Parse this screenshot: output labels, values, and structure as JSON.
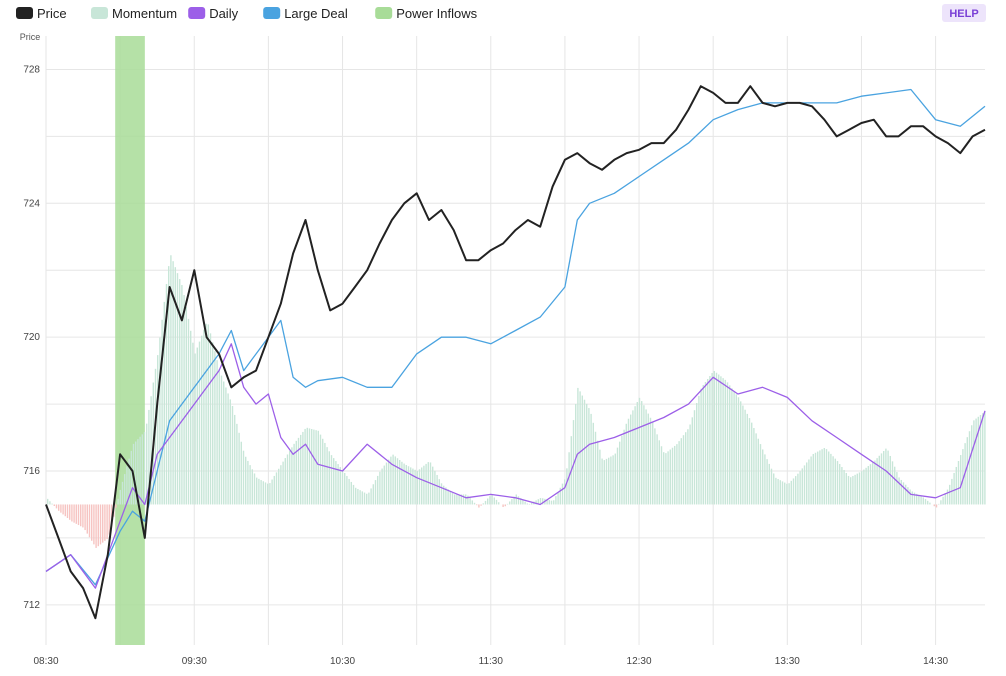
{
  "toolbar": {
    "help_label": "HELP"
  },
  "chart_data": {
    "type": "line",
    "title": "",
    "ylabel": "Price",
    "xlabel": "",
    "ylim": [
      710.8,
      729
    ],
    "grid": true,
    "legend_placement": "top-left",
    "x_ticks": [
      "08:30",
      "09:30",
      "10:30",
      "11:30",
      "12:30",
      "13:30",
      "14:30"
    ],
    "y_ticks": [
      712,
      716,
      720,
      724,
      728
    ],
    "legend": [
      {
        "name": "Price",
        "color": "#222222"
      },
      {
        "name": "Momentum",
        "color": "#c8e6d8"
      },
      {
        "name": "Daily",
        "color": "#9c5fe8"
      },
      {
        "name": "Large Deal",
        "color": "#4aa3e0"
      },
      {
        "name": "Power Inflows",
        "color": "#a8dc98"
      }
    ],
    "power_inflows": [
      {
        "start": "08:58",
        "end": "09:10"
      }
    ],
    "momentum_baseline": 715,
    "series": [
      {
        "name": "Price",
        "color": "#222222",
        "x": [
          "08:30",
          "08:35",
          "08:40",
          "08:45",
          "08:50",
          "08:55",
          "09:00",
          "09:05",
          "09:10",
          "09:15",
          "09:20",
          "09:25",
          "09:30",
          "09:35",
          "09:40",
          "09:45",
          "09:50",
          "09:55",
          "10:00",
          "10:05",
          "10:10",
          "10:15",
          "10:20",
          "10:25",
          "10:30",
          "10:35",
          "10:40",
          "10:45",
          "10:50",
          "10:55",
          "11:00",
          "11:05",
          "11:10",
          "11:15",
          "11:20",
          "11:25",
          "11:30",
          "11:35",
          "11:40",
          "11:45",
          "11:50",
          "11:55",
          "12:00",
          "12:05",
          "12:10",
          "12:15",
          "12:20",
          "12:25",
          "12:30",
          "12:35",
          "12:40",
          "12:45",
          "12:50",
          "12:55",
          "13:00",
          "13:05",
          "13:10",
          "13:15",
          "13:20",
          "13:25",
          "13:30",
          "13:35",
          "13:40",
          "13:45",
          "13:50",
          "13:55",
          "14:00",
          "14:05",
          "14:10",
          "14:15",
          "14:20",
          "14:25",
          "14:30",
          "14:35",
          "14:40",
          "14:45",
          "14:50"
        ],
        "values": [
          715.0,
          714.0,
          713.0,
          712.5,
          711.6,
          713.5,
          716.5,
          716.0,
          714.0,
          718.0,
          721.5,
          720.5,
          722.0,
          720.0,
          719.5,
          718.5,
          718.8,
          719.0,
          720.0,
          721.0,
          722.5,
          723.5,
          722.0,
          720.8,
          721.0,
          721.5,
          722.0,
          722.8,
          723.5,
          724.0,
          724.3,
          723.5,
          723.8,
          723.2,
          722.3,
          722.3,
          722.6,
          722.8,
          723.2,
          723.5,
          723.3,
          724.5,
          725.3,
          725.5,
          725.2,
          725.0,
          725.3,
          725.5,
          725.6,
          725.8,
          725.8,
          726.2,
          726.8,
          727.5,
          727.3,
          727.0,
          727.0,
          727.5,
          727.0,
          726.9,
          727.0,
          727.0,
          726.9,
          726.5,
          726.0,
          726.2,
          726.4,
          726.5,
          726.0,
          726.0,
          726.3,
          726.3,
          726.0,
          725.8,
          725.5,
          726.0,
          726.2
        ]
      },
      {
        "name": "Daily",
        "color": "#9c5fe8",
        "x": [
          "08:30",
          "08:40",
          "08:50",
          "09:00",
          "09:05",
          "09:10",
          "09:15",
          "09:20",
          "09:30",
          "09:40",
          "09:45",
          "09:50",
          "09:55",
          "10:00",
          "10:05",
          "10:10",
          "10:15",
          "10:20",
          "10:30",
          "10:40",
          "10:50",
          "11:00",
          "11:10",
          "11:20",
          "11:30",
          "11:40",
          "11:50",
          "12:00",
          "12:05",
          "12:10",
          "12:20",
          "12:30",
          "12:40",
          "12:50",
          "13:00",
          "13:10",
          "13:20",
          "13:30",
          "13:40",
          "13:50",
          "14:00",
          "14:10",
          "14:20",
          "14:30",
          "14:40",
          "14:50"
        ],
        "values": [
          713.0,
          713.5,
          712.5,
          714.5,
          715.5,
          715.0,
          716.5,
          717.0,
          718.0,
          719.0,
          719.8,
          718.5,
          718.0,
          718.3,
          717.0,
          716.5,
          716.8,
          716.2,
          716.0,
          716.8,
          716.2,
          715.8,
          715.5,
          715.2,
          715.3,
          715.2,
          715.0,
          715.5,
          716.5,
          716.8,
          717.0,
          717.3,
          717.6,
          718.0,
          718.8,
          718.3,
          718.5,
          718.2,
          717.5,
          717.0,
          716.5,
          716.0,
          715.3,
          715.2,
          715.5,
          717.8
        ]
      },
      {
        "name": "Large Deal",
        "color": "#4aa3e0",
        "x": [
          "08:30",
          "08:40",
          "08:50",
          "09:00",
          "09:05",
          "09:10",
          "09:15",
          "09:20",
          "09:30",
          "09:40",
          "09:45",
          "09:50",
          "10:00",
          "10:05",
          "10:10",
          "10:15",
          "10:20",
          "10:30",
          "10:40",
          "10:50",
          "11:00",
          "11:10",
          "11:20",
          "11:30",
          "11:40",
          "11:50",
          "12:00",
          "12:05",
          "12:10",
          "12:20",
          "12:30",
          "12:40",
          "12:50",
          "13:00",
          "13:10",
          "13:20",
          "13:30",
          "13:40",
          "13:50",
          "14:00",
          "14:10",
          "14:20",
          "14:30",
          "14:40",
          "14:50"
        ],
        "values": [
          713.0,
          713.5,
          712.6,
          714.2,
          714.8,
          714.5,
          716.0,
          717.5,
          718.5,
          719.5,
          720.2,
          719.0,
          720.0,
          720.5,
          718.8,
          718.5,
          718.7,
          718.8,
          718.5,
          718.5,
          719.5,
          720.0,
          720.0,
          719.8,
          720.2,
          720.6,
          721.5,
          723.5,
          724.0,
          724.3,
          724.8,
          725.3,
          725.8,
          726.5,
          726.8,
          727.0,
          727.0,
          727.0,
          727.0,
          727.2,
          727.3,
          727.4,
          726.5,
          726.3,
          726.9
        ]
      }
    ],
    "momentum": {
      "name": "Momentum",
      "color": "#c8e6d8",
      "negative_color": "#f6c4c2",
      "x": [
        "08:30",
        "08:35",
        "08:40",
        "08:45",
        "08:50",
        "08:55",
        "09:00",
        "09:05",
        "09:10",
        "09:15",
        "09:20",
        "09:25",
        "09:30",
        "09:35",
        "09:40",
        "09:45",
        "09:50",
        "09:55",
        "10:00",
        "10:05",
        "10:10",
        "10:15",
        "10:20",
        "10:25",
        "10:30",
        "10:35",
        "10:40",
        "10:45",
        "10:50",
        "10:55",
        "11:00",
        "11:05",
        "11:10",
        "11:15",
        "11:20",
        "11:25",
        "11:30",
        "11:35",
        "11:40",
        "11:45",
        "11:50",
        "11:55",
        "12:00",
        "12:05",
        "12:10",
        "12:15",
        "12:20",
        "12:25",
        "12:30",
        "12:35",
        "12:40",
        "12:45",
        "12:50",
        "12:55",
        "13:00",
        "13:05",
        "13:10",
        "13:15",
        "13:20",
        "13:25",
        "13:30",
        "13:35",
        "13:40",
        "13:45",
        "13:50",
        "13:55",
        "14:00",
        "14:05",
        "14:10",
        "14:15",
        "14:20",
        "14:25",
        "14:30",
        "14:35",
        "14:40",
        "14:45",
        "14:50"
      ],
      "values": [
        715.2,
        714.8,
        714.5,
        714.3,
        713.7,
        714.0,
        715.5,
        716.8,
        717.2,
        719.5,
        722.5,
        721.5,
        719.5,
        720.5,
        719.0,
        718.0,
        716.5,
        715.8,
        715.6,
        716.2,
        716.8,
        717.3,
        717.2,
        716.5,
        716.0,
        715.5,
        715.3,
        716.0,
        716.5,
        716.2,
        716.0,
        716.3,
        715.6,
        715.3,
        715.3,
        714.9,
        715.3,
        714.9,
        715.3,
        715.0,
        715.2,
        715.1,
        715.8,
        718.5,
        717.8,
        716.3,
        716.5,
        717.5,
        718.2,
        717.5,
        716.5,
        716.8,
        717.3,
        718.5,
        719.0,
        718.7,
        718.2,
        717.5,
        716.6,
        715.8,
        715.6,
        716.0,
        716.5,
        716.7,
        716.3,
        715.8,
        716.0,
        716.3,
        716.7,
        715.8,
        715.4,
        715.2,
        714.9,
        715.5,
        716.5,
        717.5,
        717.8
      ]
    }
  }
}
